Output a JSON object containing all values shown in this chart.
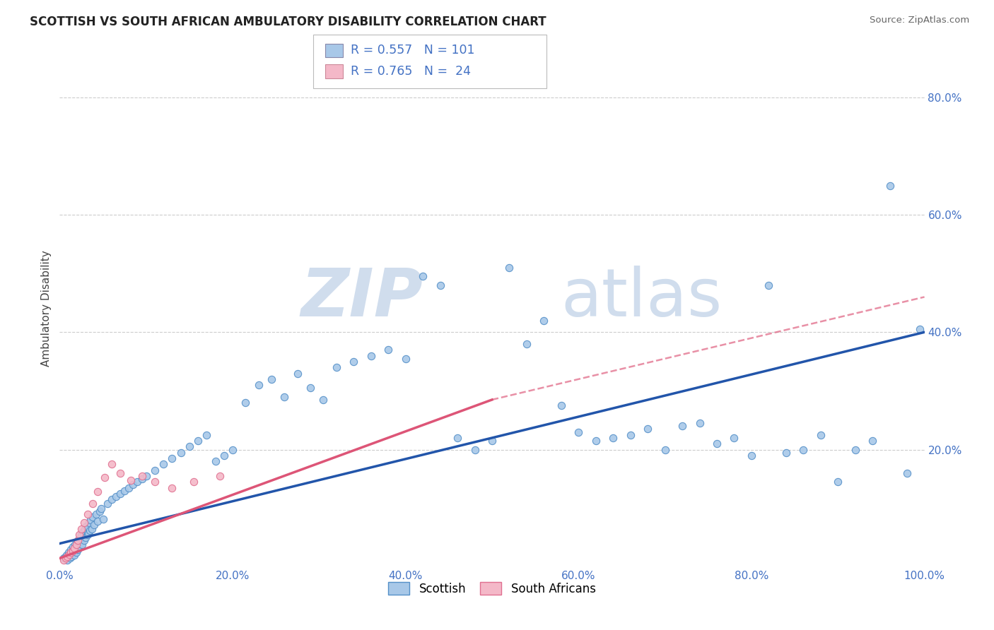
{
  "title": "SCOTTISH VS SOUTH AFRICAN AMBULATORY DISABILITY CORRELATION CHART",
  "source": "Source: ZipAtlas.com",
  "ylabel": "Ambulatory Disability",
  "xlim": [
    0,
    1.0
  ],
  "ylim": [
    0,
    0.88
  ],
  "xtick_labels": [
    "0.0%",
    "20.0%",
    "40.0%",
    "60.0%",
    "80.0%",
    "100.0%"
  ],
  "xtick_values": [
    0.0,
    0.2,
    0.4,
    0.6,
    0.8,
    1.0
  ],
  "ytick_labels": [
    "20.0%",
    "40.0%",
    "60.0%",
    "80.0%"
  ],
  "ytick_values": [
    0.2,
    0.4,
    0.6,
    0.8
  ],
  "blue_scatter_color": "#a8c8e8",
  "blue_scatter_edge": "#5590c8",
  "pink_scatter_color": "#f4b8c8",
  "pink_scatter_edge": "#e07090",
  "line_blue": "#2255aa",
  "line_pink": "#dd5577",
  "watermark_text": "ZIPatlas",
  "watermark_color": "#d0dded",
  "background_color": "#ffffff",
  "grid_color": "#cccccc",
  "ytick_color": "#4472c4",
  "xtick_color": "#4472c4",
  "legend_blue_fill": "#a8c8e8",
  "legend_pink_fill": "#f4b8c8",
  "legend_text_color": "#4472c4",
  "blue_scatter_x": [
    0.005,
    0.007,
    0.008,
    0.009,
    0.01,
    0.011,
    0.012,
    0.013,
    0.014,
    0.015,
    0.016,
    0.017,
    0.018,
    0.019,
    0.02,
    0.021,
    0.022,
    0.023,
    0.024,
    0.025,
    0.026,
    0.027,
    0.028,
    0.029,
    0.03,
    0.031,
    0.032,
    0.033,
    0.034,
    0.035,
    0.036,
    0.037,
    0.038,
    0.04,
    0.042,
    0.044,
    0.046,
    0.048,
    0.05,
    0.055,
    0.06,
    0.065,
    0.07,
    0.075,
    0.08,
    0.085,
    0.09,
    0.095,
    0.1,
    0.11,
    0.12,
    0.13,
    0.14,
    0.15,
    0.16,
    0.17,
    0.18,
    0.19,
    0.2,
    0.215,
    0.23,
    0.245,
    0.26,
    0.275,
    0.29,
    0.305,
    0.32,
    0.34,
    0.36,
    0.38,
    0.4,
    0.42,
    0.44,
    0.46,
    0.48,
    0.5,
    0.52,
    0.54,
    0.56,
    0.58,
    0.6,
    0.62,
    0.64,
    0.66,
    0.68,
    0.7,
    0.72,
    0.74,
    0.76,
    0.78,
    0.8,
    0.82,
    0.84,
    0.86,
    0.88,
    0.9,
    0.92,
    0.94,
    0.96,
    0.98,
    0.995
  ],
  "blue_scatter_y": [
    0.015,
    0.018,
    0.02,
    0.012,
    0.025,
    0.022,
    0.016,
    0.03,
    0.018,
    0.035,
    0.028,
    0.02,
    0.038,
    0.025,
    0.042,
    0.03,
    0.035,
    0.048,
    0.04,
    0.055,
    0.038,
    0.06,
    0.045,
    0.065,
    0.05,
    0.07,
    0.055,
    0.058,
    0.075,
    0.062,
    0.08,
    0.065,
    0.085,
    0.072,
    0.09,
    0.078,
    0.095,
    0.1,
    0.082,
    0.108,
    0.115,
    0.12,
    0.125,
    0.13,
    0.135,
    0.14,
    0.145,
    0.15,
    0.155,
    0.165,
    0.175,
    0.185,
    0.195,
    0.205,
    0.215,
    0.225,
    0.18,
    0.19,
    0.2,
    0.28,
    0.31,
    0.32,
    0.29,
    0.33,
    0.305,
    0.285,
    0.34,
    0.35,
    0.36,
    0.37,
    0.355,
    0.495,
    0.48,
    0.22,
    0.2,
    0.215,
    0.51,
    0.38,
    0.42,
    0.275,
    0.23,
    0.215,
    0.22,
    0.225,
    0.235,
    0.2,
    0.24,
    0.245,
    0.21,
    0.22,
    0.19,
    0.48,
    0.195,
    0.2,
    0.225,
    0.145,
    0.2,
    0.215,
    0.65,
    0.16,
    0.405
  ],
  "pink_scatter_x": [
    0.005,
    0.007,
    0.009,
    0.011,
    0.013,
    0.015,
    0.017,
    0.019,
    0.021,
    0.023,
    0.025,
    0.028,
    0.032,
    0.038,
    0.044,
    0.052,
    0.06,
    0.07,
    0.082,
    0.095,
    0.11,
    0.13,
    0.155,
    0.185
  ],
  "pink_scatter_y": [
    0.012,
    0.015,
    0.018,
    0.022,
    0.025,
    0.028,
    0.032,
    0.038,
    0.045,
    0.055,
    0.065,
    0.075,
    0.09,
    0.108,
    0.128,
    0.152,
    0.175,
    0.16,
    0.148,
    0.155,
    0.145,
    0.135,
    0.145,
    0.155
  ],
  "trendline_blue_x0": 0.0,
  "trendline_blue_x1": 1.0,
  "trendline_blue_y0": 0.04,
  "trendline_blue_y1": 0.4,
  "trendline_pink_solid_x0": 0.0,
  "trendline_pink_solid_x1": 0.5,
  "trendline_pink_solid_y0": 0.015,
  "trendline_pink_solid_y1": 0.285,
  "trendline_pink_dash_x0": 0.5,
  "trendline_pink_dash_x1": 1.0,
  "trendline_pink_dash_y0": 0.285,
  "trendline_pink_dash_y1": 0.46
}
